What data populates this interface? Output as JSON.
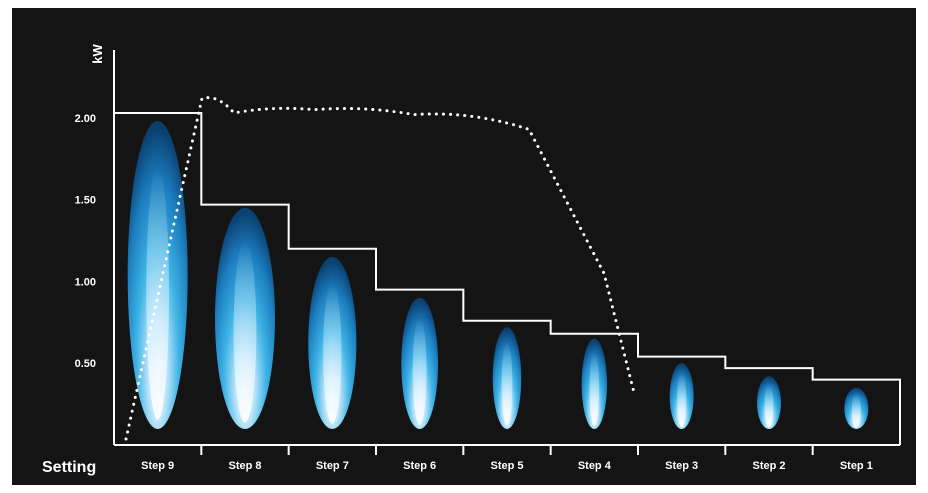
{
  "chart_data": {
    "type": "bar",
    "ylabel": "kW",
    "xlabel": "Setting",
    "ylim": [
      0,
      2.3
    ],
    "yticks": [
      0.5,
      1.0,
      1.5,
      2.0
    ],
    "ytick_labels": [
      "0.50",
      "1.00",
      "1.50",
      "2.00"
    ],
    "categories": [
      "Step 9",
      "Step 8",
      "Step 7",
      "Step 6",
      "Step 5",
      "Step 4",
      "Step 3",
      "Step 2",
      "Step 1"
    ],
    "series": [
      {
        "values": [
          2.03,
          1.47,
          1.2,
          0.95,
          0.76,
          0.68,
          0.54,
          0.47,
          0.4
        ]
      },
      {
        "values": [
          2.12,
          2.03,
          2.05,
          2.02,
          1.93,
          1.05,
          0.32,
          null,
          null
        ]
      }
    ],
    "flame_heights": [
      1.98,
      1.45,
      1.15,
      0.9,
      0.72,
      0.65,
      0.5,
      0.42,
      0.35
    ],
    "grid": false,
    "colors": {
      "background": "#141414",
      "line": "#ffffff",
      "flame_outer": "#0b4f86",
      "flame_mid": "#2ea8e0",
      "flame_core": "#e8f6ff"
    }
  }
}
